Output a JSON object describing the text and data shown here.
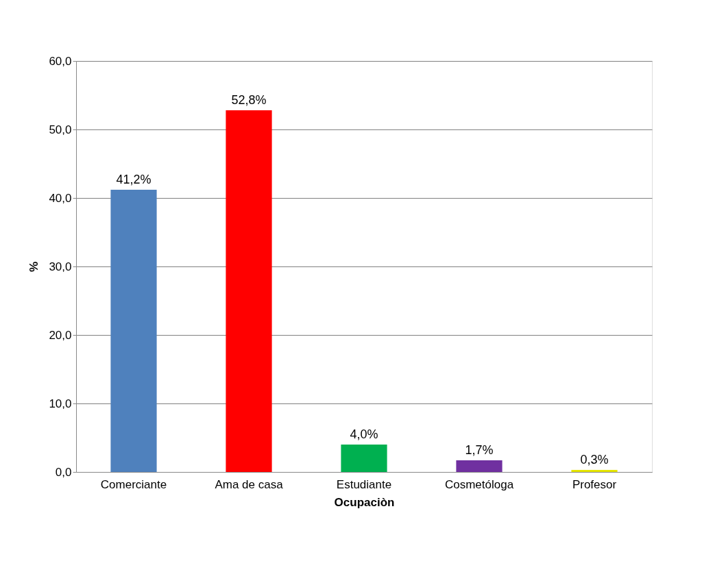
{
  "chart_data": {
    "type": "bar",
    "xlabel": "Ocupaciòn",
    "ylabel": "%",
    "categories": [
      "Comerciante",
      "Ama de casa",
      "Estudiante",
      "Cosmetóloga",
      "Profesor"
    ],
    "values": [
      41.2,
      52.8,
      4.0,
      1.7,
      0.3
    ],
    "value_labels": [
      "41,2%",
      "52,8%",
      "4,0%",
      "1,7%",
      "0,3%"
    ],
    "colors": [
      "#4f81bd",
      "#ff0000",
      "#00b050",
      "#7030a0",
      "#e6e600"
    ],
    "ylim": [
      0,
      60
    ],
    "yticks": [
      {
        "value": 0,
        "label": "0,0"
      },
      {
        "value": 10,
        "label": "10,0"
      },
      {
        "value": 20,
        "label": "20,0"
      },
      {
        "value": 30,
        "label": "30,0"
      },
      {
        "value": 40,
        "label": "40,0"
      },
      {
        "value": 50,
        "label": "50,0"
      },
      {
        "value": 60,
        "label": "60,0"
      }
    ],
    "grid": "y"
  }
}
